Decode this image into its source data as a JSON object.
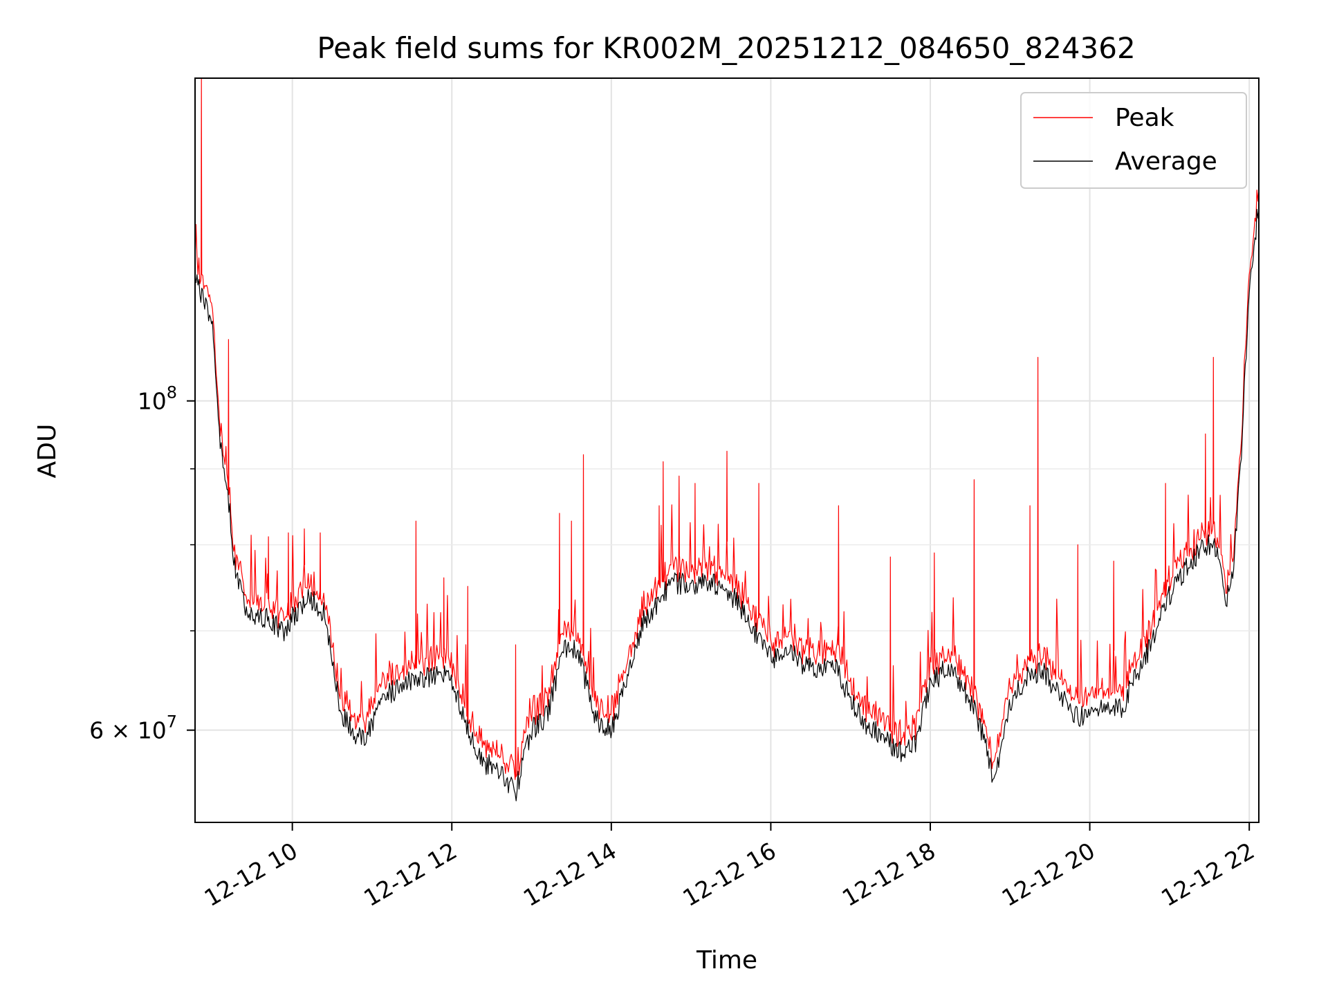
{
  "chart_data": {
    "type": "line",
    "title": "Peak field sums for KR002M_20251212_084650_824362",
    "xlabel": "Time",
    "ylabel": "ADU",
    "x_unit": "hours since 12-12 00:00",
    "xlim": [
      8.78,
      22.12
    ],
    "ylim": [
      52000000,
      165000000
    ],
    "yscale": "log",
    "grid": true,
    "legend_position": "top-right",
    "x_tick_labels": [
      {
        "value": 10,
        "label": "12-12 10"
      },
      {
        "value": 12,
        "label": "12-12 12"
      },
      {
        "value": 14,
        "label": "12-12 14"
      },
      {
        "value": 16,
        "label": "12-12 16"
      },
      {
        "value": 18,
        "label": "12-12 18"
      },
      {
        "value": 20,
        "label": "12-12 20"
      },
      {
        "value": 22,
        "label": "12-12 22"
      }
    ],
    "y_tick_labels": [
      {
        "value": 60000000,
        "base": "6 × 10",
        "exp": "7"
      },
      {
        "value": 100000000,
        "base": "10",
        "exp": "8"
      }
    ],
    "y_minor_ticks": [
      70000000,
      80000000,
      90000000
    ],
    "series": [
      {
        "name": "Peak",
        "color": "#ff0000",
        "x": [
          8.78,
          8.85,
          8.9,
          9.0,
          9.1,
          9.2,
          9.25,
          9.3,
          9.4,
          9.5,
          9.6,
          9.7,
          9.8,
          9.9,
          10.0,
          10.1,
          10.2,
          10.3,
          10.4,
          10.5,
          10.6,
          10.7,
          10.8,
          10.9,
          11.0,
          11.2,
          11.4,
          11.6,
          11.8,
          12.0,
          12.2,
          12.4,
          12.6,
          12.8,
          13.0,
          13.2,
          13.4,
          13.5,
          13.6,
          13.7,
          13.8,
          14.0,
          14.2,
          14.4,
          14.6,
          14.8,
          15.0,
          15.2,
          15.4,
          15.6,
          15.8,
          16.0,
          16.2,
          16.4,
          16.6,
          16.8,
          17.0,
          17.2,
          17.4,
          17.6,
          17.8,
          18.0,
          18.2,
          18.4,
          18.6,
          18.8,
          19.0,
          19.2,
          19.4,
          19.6,
          19.8,
          20.0,
          20.2,
          20.4,
          20.6,
          20.8,
          21.0,
          21.2,
          21.4,
          21.5,
          21.6,
          21.7,
          21.8,
          21.9,
          22.0,
          22.12
        ],
        "y": [
          124000000,
          120000000,
          118000000,
          115000000,
          94000000,
          87000000,
          81000000,
          77000000,
          74000000,
          72000000,
          72500000,
          72500000,
          71500000,
          71000000,
          72500000,
          73500000,
          74500000,
          74000000,
          73000000,
          67500000,
          63000000,
          61500000,
          60500000,
          60000000,
          61500000,
          64500000,
          65500000,
          66000000,
          66500000,
          66000000,
          61000000,
          58000000,
          57500000,
          55500000,
          61000000,
          62500000,
          69000000,
          69500000,
          68000000,
          65000000,
          62000000,
          61000000,
          66000000,
          72000000,
          74500000,
          76500000,
          76000000,
          76500000,
          76000000,
          74000000,
          71000000,
          68000000,
          69000000,
          67500000,
          67000000,
          67500000,
          64000000,
          61500000,
          60500000,
          59000000,
          59500000,
          65500000,
          67000000,
          65500000,
          62000000,
          56500000,
          63500000,
          66000000,
          67000000,
          64500000,
          62500000,
          62000000,
          63500000,
          63000000,
          66500000,
          70000000,
          75000000,
          78000000,
          80500000,
          81000000,
          80000000,
          74000000,
          78500000,
          92000000,
          120000000,
          138000000
        ],
        "spikes": [
          {
            "x": 8.86,
            "y": 165000000
          },
          {
            "x": 9.2,
            "y": 110000000
          },
          {
            "x": 9.7,
            "y": 81000000
          },
          {
            "x": 9.95,
            "y": 81500000
          },
          {
            "x": 10.15,
            "y": 82000000
          },
          {
            "x": 10.35,
            "y": 81500000
          },
          {
            "x": 11.55,
            "y": 83000000
          },
          {
            "x": 11.9,
            "y": 76000000
          },
          {
            "x": 12.2,
            "y": 75000000
          },
          {
            "x": 12.8,
            "y": 68500000
          },
          {
            "x": 13.35,
            "y": 84000000
          },
          {
            "x": 13.5,
            "y": 83000000
          },
          {
            "x": 13.65,
            "y": 92000000
          },
          {
            "x": 14.6,
            "y": 85000000
          },
          {
            "x": 14.65,
            "y": 91000000
          },
          {
            "x": 14.85,
            "y": 89000000
          },
          {
            "x": 15.05,
            "y": 88000000
          },
          {
            "x": 15.45,
            "y": 92500000
          },
          {
            "x": 15.85,
            "y": 88000000
          },
          {
            "x": 16.85,
            "y": 85000000
          },
          {
            "x": 17.5,
            "y": 78500000
          },
          {
            "x": 18.05,
            "y": 79000000
          },
          {
            "x": 18.55,
            "y": 88500000
          },
          {
            "x": 19.25,
            "y": 85000000
          },
          {
            "x": 19.35,
            "y": 107000000
          },
          {
            "x": 19.85,
            "y": 80000000
          },
          {
            "x": 20.3,
            "y": 78000000
          },
          {
            "x": 20.95,
            "y": 88000000
          },
          {
            "x": 21.45,
            "y": 95000000
          },
          {
            "x": 21.55,
            "y": 107000000
          }
        ]
      },
      {
        "name": "Average",
        "color": "#000000",
        "x": [
          8.78,
          8.85,
          8.9,
          9.0,
          9.1,
          9.2,
          9.25,
          9.3,
          9.4,
          9.5,
          9.6,
          9.7,
          9.8,
          9.9,
          10.0,
          10.1,
          10.2,
          10.3,
          10.4,
          10.5,
          10.6,
          10.7,
          10.8,
          10.9,
          11.0,
          11.2,
          11.4,
          11.6,
          11.8,
          12.0,
          12.2,
          12.4,
          12.6,
          12.8,
          13.0,
          13.2,
          13.4,
          13.5,
          13.6,
          13.7,
          13.8,
          14.0,
          14.2,
          14.4,
          14.6,
          14.8,
          15.0,
          15.2,
          15.4,
          15.6,
          15.8,
          16.0,
          16.2,
          16.4,
          16.6,
          16.8,
          17.0,
          17.2,
          17.4,
          17.6,
          17.8,
          18.0,
          18.2,
          18.4,
          18.6,
          18.8,
          19.0,
          19.2,
          19.4,
          19.6,
          19.8,
          20.0,
          20.2,
          20.4,
          20.6,
          20.8,
          21.0,
          21.2,
          21.4,
          21.5,
          21.6,
          21.7,
          21.8,
          21.9,
          22.0,
          22.12
        ],
        "y": [
          123000000,
          118000000,
          116000000,
          113000000,
          93000000,
          86000000,
          80000000,
          76000000,
          73000000,
          71000000,
          71500000,
          71500000,
          70500000,
          70000000,
          71500000,
          72500000,
          73500000,
          73000000,
          72000000,
          66500000,
          62000000,
          60500000,
          59500000,
          59000000,
          60500000,
          63500000,
          64500000,
          65000000,
          65500000,
          65000000,
          60000000,
          57000000,
          56500000,
          54500000,
          60000000,
          61500000,
          68000000,
          68500000,
          67000000,
          64000000,
          61000000,
          60000000,
          65000000,
          71000000,
          73500000,
          75500000,
          75000000,
          75500000,
          75000000,
          73000000,
          70000000,
          67000000,
          68000000,
          66500000,
          66000000,
          66500000,
          63000000,
          60500000,
          59500000,
          58000000,
          58500000,
          64500000,
          66000000,
          64500000,
          61000000,
          55500000,
          62500000,
          65000000,
          66000000,
          63500000,
          61500000,
          61000000,
          62500000,
          62000000,
          65500000,
          69000000,
          74000000,
          77000000,
          79500000,
          80000000,
          79000000,
          73000000,
          77500000,
          91000000,
          118000000,
          136000000
        ]
      }
    ]
  }
}
